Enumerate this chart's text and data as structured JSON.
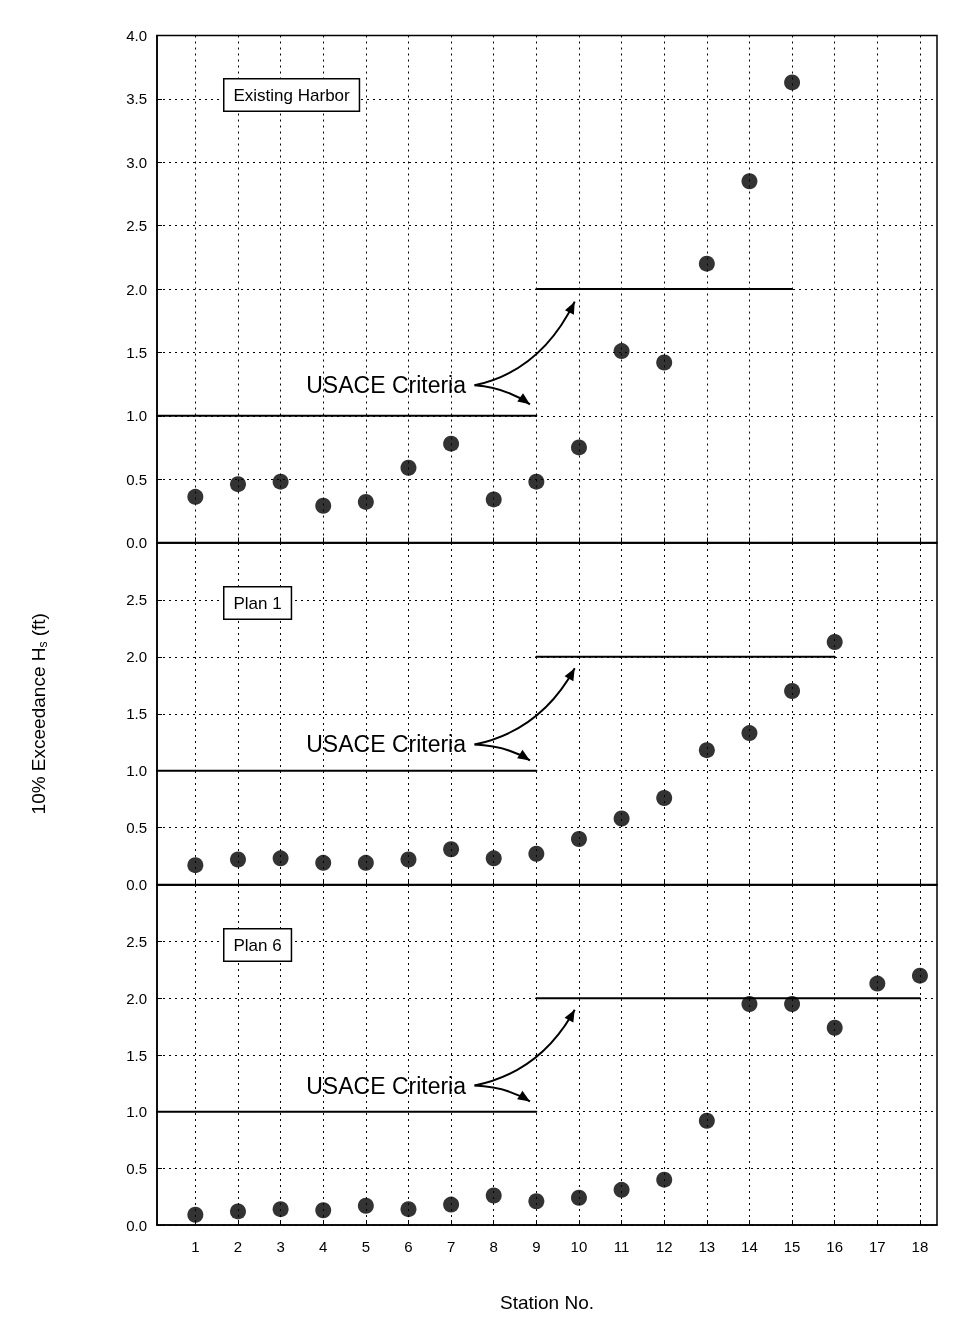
{
  "chart_data": [
    {
      "type": "scatter",
      "annotations": [
        "Existing Harbor",
        "USACE Criteria"
      ],
      "x": [
        1,
        2,
        3,
        4,
        5,
        6,
        7,
        8,
        9,
        10,
        11,
        12,
        13,
        14,
        15
      ],
      "series": [
        {
          "color": "#000000",
          "values": [
            0.36,
            0.46,
            0.48,
            0.29,
            0.32,
            0.59,
            0.78,
            0.34,
            0.48,
            0.75,
            1.51,
            1.42,
            2.2,
            2.85,
            3.63
          ]
        },
        {
          "type": "line",
          "marker": "none",
          "line_style": "solid",
          "color": "#000000",
          "x": [
            0.1,
            9
          ],
          "values": [
            1,
            1
          ]
        },
        {
          "type": "line",
          "marker": "none",
          "line_style": "solid",
          "color": "#000000",
          "x": [
            9,
            15
          ],
          "values": [
            2,
            2
          ]
        }
      ],
      "xlim": [
        0.1,
        18.4
      ],
      "xticks": [
        1,
        2,
        3,
        4,
        5,
        6,
        7,
        8,
        9,
        10,
        11,
        12,
        13,
        14,
        15,
        16,
        17,
        18
      ],
      "ylim": [
        0,
        4
      ],
      "yticks": [
        {
          "value": 0,
          "label": "0.0"
        },
        {
          "value": 0.5,
          "label": "0.5"
        },
        {
          "value": 1,
          "label": "1.0"
        },
        {
          "value": 1.5,
          "label": "1.5"
        },
        {
          "value": 2,
          "label": "2.0"
        },
        {
          "value": 2.5,
          "label": "2.5"
        },
        {
          "value": 3,
          "label": "3.0"
        },
        {
          "value": 3.5,
          "label": "3.5"
        },
        {
          "value": 4,
          "label": "4.0"
        }
      ],
      "tick_labels": "y",
      "grid": true,
      "marker": "circle"
    },
    {
      "type": "scatter",
      "ylabel": "10% Exceedance H$_{s}$ (ft)",
      "annotations": [
        "Plan 1",
        "USACE Criteria"
      ],
      "x": [
        1,
        2,
        3,
        4,
        5,
        6,
        7,
        8,
        9,
        10,
        11,
        12,
        13,
        14,
        15,
        16
      ],
      "series": [
        {
          "color": "#000000",
          "values": [
            0.17,
            0.22,
            0.23,
            0.19,
            0.19,
            0.22,
            0.31,
            0.23,
            0.27,
            0.4,
            0.58,
            0.76,
            1.18,
            1.33,
            1.7,
            2.13
          ]
        },
        {
          "type": "line",
          "marker": "none",
          "line_style": "solid",
          "color": "#000000",
          "x": [
            0.1,
            9
          ],
          "values": [
            1,
            1
          ]
        },
        {
          "type": "line",
          "marker": "none",
          "line_style": "solid",
          "color": "#000000",
          "x": [
            9,
            16
          ],
          "values": [
            2,
            2
          ]
        }
      ],
      "xlim": [
        0.1,
        18.4
      ],
      "xticks": [
        1,
        2,
        3,
        4,
        5,
        6,
        7,
        8,
        9,
        10,
        11,
        12,
        13,
        14,
        15,
        16,
        17,
        18
      ],
      "ylim": [
        0,
        3
      ],
      "yticks": [
        {
          "value": 0,
          "label": "0.0"
        },
        {
          "value": 0.5,
          "label": "0.5"
        },
        {
          "value": 1,
          "label": "1.0"
        },
        {
          "value": 1.5,
          "label": "1.5"
        },
        {
          "value": 2,
          "label": "2.0"
        },
        {
          "value": 2.5,
          "label": "2.5"
        }
      ],
      "tick_labels": "y",
      "grid": true,
      "marker": "circle"
    },
    {
      "type": "scatter",
      "xlabel": "Station No.",
      "annotations": [
        "Plan 6",
        "USACE Criteria"
      ],
      "x": [
        1,
        2,
        3,
        4,
        5,
        6,
        7,
        8,
        9,
        10,
        11,
        12,
        13,
        14,
        15,
        16,
        17,
        18
      ],
      "series": [
        {
          "color": "#000000",
          "values": [
            0.09,
            0.12,
            0.14,
            0.13,
            0.17,
            0.14,
            0.18,
            0.26,
            0.21,
            0.24,
            0.31,
            0.4,
            0.92,
            1.95,
            1.95,
            1.74,
            2.13,
            2.2
          ]
        },
        {
          "type": "line",
          "marker": "none",
          "line_style": "solid",
          "color": "#000000",
          "x": [
            0.1,
            9
          ],
          "values": [
            1,
            1
          ]
        },
        {
          "type": "line",
          "marker": "none",
          "line_style": "solid",
          "color": "#000000",
          "x": [
            9,
            18
          ],
          "values": [
            2,
            2
          ]
        }
      ],
      "xlim": [
        0.1,
        18.4
      ],
      "xticks": [
        1,
        2,
        3,
        4,
        5,
        6,
        7,
        8,
        9,
        10,
        11,
        12,
        13,
        14,
        15,
        16,
        17,
        18
      ],
      "ylim": [
        0,
        3
      ],
      "yticks": [
        {
          "value": 0,
          "label": "0.0"
        },
        {
          "value": 0.5,
          "label": "0.5"
        },
        {
          "value": 1,
          "label": "1.0"
        },
        {
          "value": 1.5,
          "label": "1.5"
        },
        {
          "value": 2,
          "label": "2.0"
        },
        {
          "value": 2.5,
          "label": "2.5"
        }
      ],
      "grid": true,
      "marker": "circle"
    }
  ]
}
